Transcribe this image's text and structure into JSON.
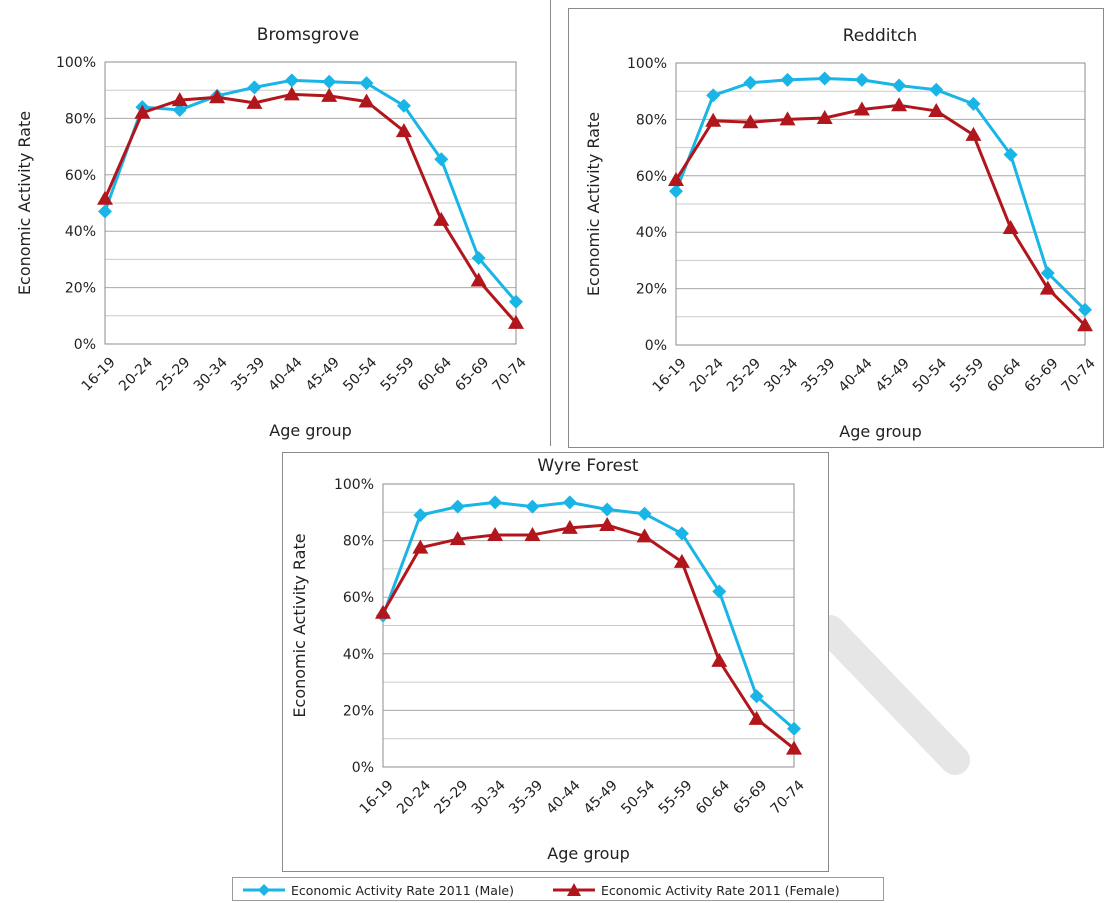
{
  "colors": {
    "male": "#19b5e6",
    "female": "#b2161d"
  },
  "legend": {
    "male_label": "Economic Activity Rate 2011 (Male)",
    "female_label": "Economic Activity Rate 2011 (Female)"
  },
  "chart_data": [
    {
      "type": "line",
      "title": "Bromsgrove",
      "xlabel": "Age group",
      "ylabel": "Economic Activity Rate",
      "yticks": [
        "0%",
        "20%",
        "40%",
        "60%",
        "80%",
        "100%"
      ],
      "ylim": [
        0,
        100
      ],
      "grid": true,
      "categories": [
        "16-19",
        "20-24",
        "25-29",
        "30-34",
        "35-39",
        "40-44",
        "45-49",
        "50-54",
        "55-59",
        "60-64",
        "65-69",
        "70-74"
      ],
      "series": [
        {
          "name": "Economic Activity Rate 2011 (Male)",
          "values": [
            47,
            84,
            83,
            88,
            91,
            93.5,
            93,
            92.5,
            84.5,
            65.5,
            30.5,
            15
          ]
        },
        {
          "name": "Economic Activity Rate 2011 (Female)",
          "values": [
            51.5,
            82,
            86.5,
            87.5,
            85.5,
            88.5,
            88,
            86,
            75.5,
            44,
            22.5,
            7.5
          ]
        }
      ]
    },
    {
      "type": "line",
      "title": "Redditch",
      "xlabel": "Age group",
      "ylabel": "Economic Activity Rate",
      "yticks": [
        "0%",
        "20%",
        "40%",
        "60%",
        "80%",
        "100%"
      ],
      "ylim": [
        0,
        100
      ],
      "grid": true,
      "categories": [
        "16-19",
        "20-24",
        "25-29",
        "30-34",
        "35-39",
        "40-44",
        "45-49",
        "50-54",
        "55-59",
        "60-64",
        "65-69",
        "70-74"
      ],
      "series": [
        {
          "name": "Economic Activity Rate 2011 (Male)",
          "values": [
            54.5,
            88.5,
            93,
            94,
            94.5,
            94,
            92,
            90.5,
            85.5,
            67.5,
            25.5,
            12.5
          ]
        },
        {
          "name": "Economic Activity Rate 2011 (Female)",
          "values": [
            58.5,
            79.5,
            79,
            80,
            80.5,
            83.5,
            85,
            83,
            74.5,
            41.5,
            20,
            7
          ]
        }
      ]
    },
    {
      "type": "line",
      "title": "Wyre Forest",
      "xlabel": "Age group",
      "ylabel": "Economic Activity Rate",
      "yticks": [
        "0%",
        "20%",
        "40%",
        "60%",
        "80%",
        "100%"
      ],
      "ylim": [
        0,
        100
      ],
      "grid": true,
      "categories": [
        "16-19",
        "20-24",
        "25-29",
        "30-34",
        "35-39",
        "40-44",
        "45-49",
        "50-54",
        "55-59",
        "60-64",
        "65-69",
        "70-74"
      ],
      "series": [
        {
          "name": "Economic Activity Rate 2011 (Male)",
          "values": [
            53.5,
            89,
            92,
            93.5,
            92,
            93.5,
            91,
            89.5,
            82.5,
            62,
            25,
            13.5
          ]
        },
        {
          "name": "Economic Activity Rate 2011 (Female)",
          "values": [
            54.5,
            77.5,
            80.5,
            82,
            82,
            84.5,
            85.5,
            81.5,
            72.5,
            37.5,
            17,
            6.5
          ]
        }
      ]
    }
  ]
}
